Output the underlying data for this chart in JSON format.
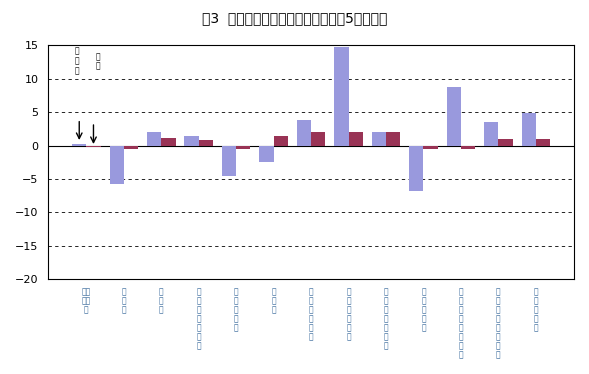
{
  "title": "嘰3  産業別現金給与総額の前年比（5人以上）",
  "categories": [
    "調査\n産業\n計",
    "建\n設\n業",
    "製\n造\n業",
    "電\n気\nガ\nス\n水\n道\n業",
    "情\n報\n通\n信\n業",
    "運\n輸\n業",
    "卸\n売\n・\n小\n小\n業",
    "金\n融\n・\n保\n険\n業",
    "飲\n食\n店\n・\n宿\n泊\n業",
    "医\n療\n・\n福\n祉",
    "教\n育\n・\n学\n習\n支\n援\n業",
    "複\n合\nサ\nー\nビ\nス\n事\n業",
    "サ\nー\nビ\nス\n業"
  ],
  "tottori_values": [
    0.3,
    -5.8,
    2.0,
    1.5,
    -4.5,
    -2.5,
    3.8,
    14.8,
    2.0,
    -6.8,
    8.7,
    3.5,
    4.8
  ],
  "national_values": [
    -0.2,
    -0.5,
    1.2,
    0.8,
    -0.5,
    1.5,
    2.0,
    2.0,
    2.0,
    -0.5,
    -0.5,
    1.0,
    1.0
  ],
  "tottori_color": "#9999dd",
  "national_color": "#993355",
  "ylim": [
    -20,
    15
  ],
  "yticks": [
    -20,
    -15,
    -10,
    -5,
    0,
    5,
    10,
    15
  ],
  "background_color": "#ffffff"
}
